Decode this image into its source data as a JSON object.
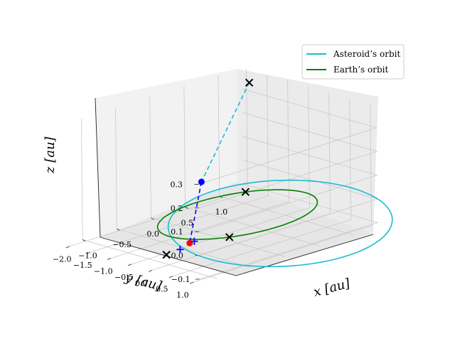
{
  "chart_data": {
    "type": "3d-line",
    "title": "",
    "xlabel": "x [au]",
    "ylabel": "y [au]",
    "zlabel": "z [au]",
    "xlim": [
      -1.25,
      1.35
    ],
    "ylim": [
      -2.1,
      1.15
    ],
    "zlim": [
      -0.12,
      0.39
    ],
    "xticks": [
      -1.0,
      -0.5,
      0.0,
      0.5,
      1.0
    ],
    "xtick_labels": [
      "−1.0",
      "−0.5",
      "0.0",
      "0.5",
      "1.0"
    ],
    "yticks": [
      1.0,
      0.5,
      0.0,
      -0.5,
      -1.0,
      -1.5,
      -2.0
    ],
    "ytick_labels": [
      "1.0",
      "0.5",
      "0.0",
      "−0.5",
      "−1.0",
      "−1.5",
      "−2.0"
    ],
    "zticks": [
      -0.1,
      0.0,
      0.1,
      0.2,
      0.3
    ],
    "ztick_labels": [
      "−0.1",
      "0.0",
      "0.1",
      "0.2",
      "0.3"
    ],
    "grid": true,
    "legend_position": "top-right",
    "series": [
      {
        "name": "Asteroid’s orbit",
        "color": "#17becf",
        "orbit": {
          "semi_major_axis": 1.45,
          "eccentricity": 0.45,
          "inclination_deg": 13,
          "ascending_node_deg": 38,
          "arg_periapsis_deg": 138
        }
      },
      {
        "name": "Earth’s orbit",
        "color": "#008000",
        "orbit": {
          "semi_major_axis": 1.0,
          "eccentricity": 0.0,
          "inclination_deg": 0,
          "ascending_node_deg": 0,
          "arg_periapsis_deg": 0
        }
      }
    ],
    "markers": [
      {
        "kind": "x",
        "color": "#000000",
        "x": 1.15,
        "y": -1.6,
        "z": 0.37
      },
      {
        "kind": "x",
        "color": "#000000",
        "x": -0.6,
        "y": 0.8,
        "z": 0.0
      },
      {
        "kind": "x",
        "color": "#000000",
        "x": 0.6,
        "y": -0.8,
        "z": 0.0
      },
      {
        "kind": "x",
        "color": "#000000",
        "x": -0.95,
        "y": -0.15,
        "z": -0.09
      },
      {
        "kind": "dot",
        "color": "#0000ff",
        "x": 0.08,
        "y": -1.0,
        "z": 0.08
      },
      {
        "kind": "dot",
        "color": "#ff0000",
        "x": -0.85,
        "y": 0.25,
        "z": -0.03
      },
      {
        "kind": "plus",
        "color": "#0000ff",
        "x": -0.83,
        "y": 0.33,
        "z": -0.02
      },
      {
        "kind": "plus",
        "color": "#0000ff",
        "x": -0.9,
        "y": 0.1,
        "z": -0.06
      }
    ],
    "connectors": [
      {
        "color": "#0000ff",
        "style": "dashed",
        "from": [
          0.08,
          -1.0,
          0.08
        ],
        "to": [
          -0.85,
          0.25,
          -0.03
        ]
      },
      {
        "color": "#17becf",
        "style": "dashed",
        "from": [
          1.15,
          -1.6,
          0.37
        ],
        "to": [
          0.08,
          -1.0,
          0.08
        ]
      }
    ]
  }
}
